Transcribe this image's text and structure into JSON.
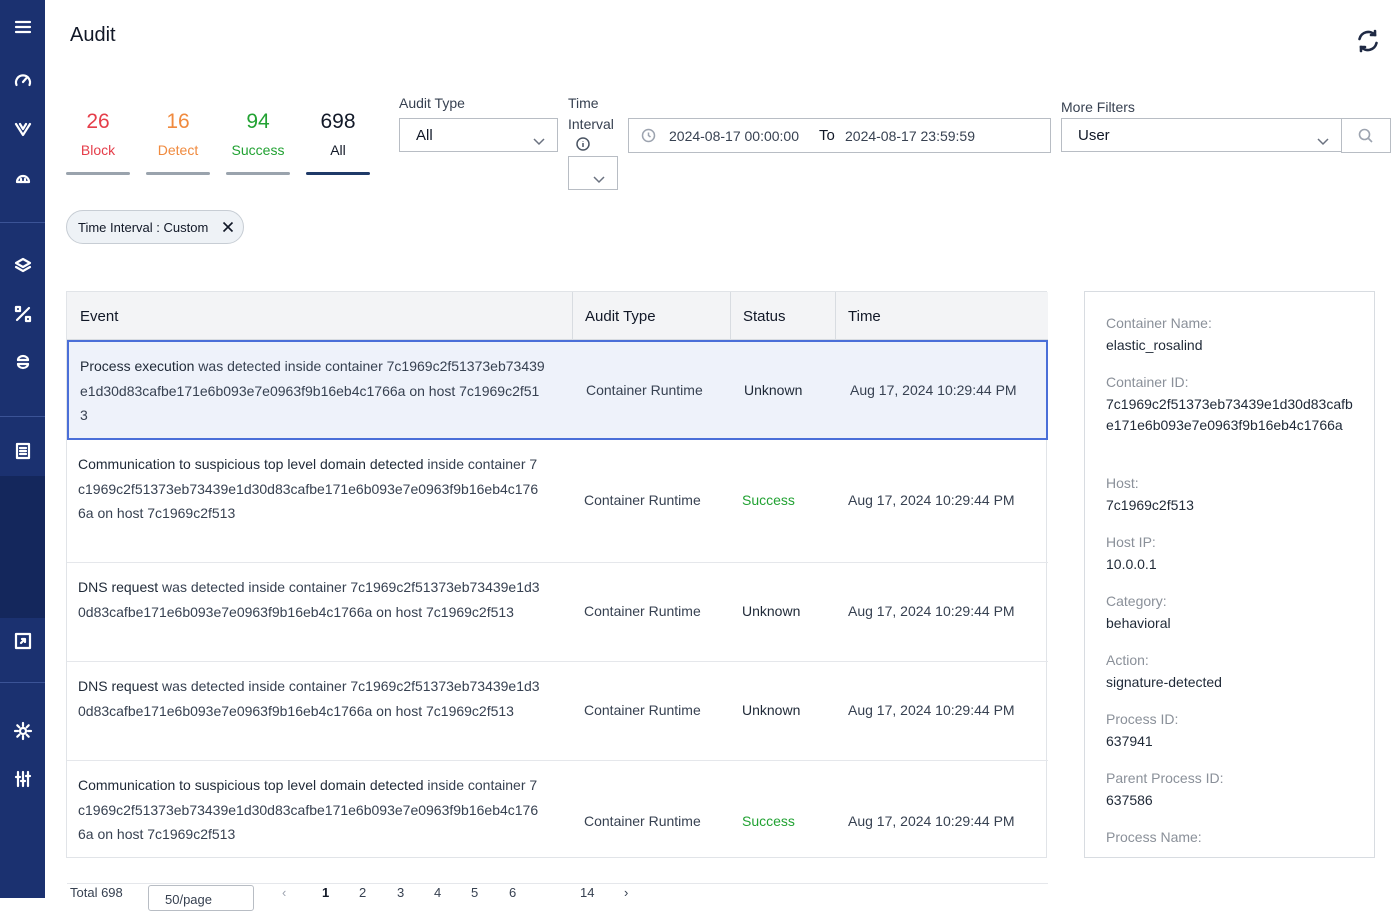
{
  "page": {
    "title": "Audit"
  },
  "counters": [
    {
      "value": "26",
      "label": "Block",
      "color": "#e53e4a"
    },
    {
      "value": "16",
      "label": "Detect",
      "color": "#f08a3e"
    },
    {
      "value": "94",
      "label": "Success",
      "color": "#22a233"
    },
    {
      "value": "698",
      "label": "All",
      "color": "#111827"
    }
  ],
  "filters": {
    "audit_type_label": "Audit Type",
    "audit_type_value": "All",
    "time_interval_label_1": "Time",
    "time_interval_label_2": "Interval",
    "time_interval_value": "",
    "range_start": "2024-08-17 00:00:00",
    "range_to": "To",
    "range_end": "2024-08-17 23:59:59",
    "more_filters_label": "More Filters",
    "more_filters_value": "User",
    "active_chip": "Time Interval : Custom"
  },
  "table": {
    "headers": [
      "Event",
      "Audit Type",
      "Status",
      "Time"
    ],
    "rows": [
      {
        "event_bold": "Process execution",
        "event_rest": " was detected inside container 7c1969c2f51373eb73439e1d30d83cafbe171e6b093e7e0963f9b16eb4c1766a on host 7c1969c2f513",
        "audit_type": "Container Runtime",
        "status": "Unknown",
        "time": "Aug 17, 2024 10:29:44 PM"
      },
      {
        "event_bold": "Communication to suspicious top level domain detected",
        "event_rest": " inside container 7c1969c2f51373eb73439e1d30d83cafbe171e6b093e7e0963f9b16eb4c1766a on host 7c1969c2f513",
        "audit_type": "Container Runtime",
        "status": "Success",
        "time": "Aug 17, 2024 10:29:44 PM"
      },
      {
        "event_bold": "DNS request",
        "event_rest": " was detected inside container 7c1969c2f51373eb73439e1d30d83cafbe171e6b093e7e0963f9b16eb4c1766a on host 7c1969c2f513",
        "audit_type": "Container Runtime",
        "status": "Unknown",
        "time": "Aug 17, 2024 10:29:44 PM"
      },
      {
        "event_bold": "DNS request",
        "event_rest": " was detected inside container 7c1969c2f51373eb73439e1d30d83cafbe171e6b093e7e0963f9b16eb4c1766a on host 7c1969c2f513",
        "audit_type": "Container Runtime",
        "status": "Unknown",
        "time": "Aug 17, 2024 10:29:44 PM"
      },
      {
        "event_bold": "Communication to suspicious top level domain detected",
        "event_rest": " inside container 7c1969c2f51373eb73439e1d30d83cafbe171e6b093e7e0963f9b16eb4c1766a on host 7c1969c2f513",
        "audit_type": "Container Runtime",
        "status": "Success",
        "time": "Aug 17, 2024 10:29:44 PM"
      }
    ]
  },
  "details": [
    {
      "key": "Container Name:",
      "value": "elastic_rosalind"
    },
    {
      "key": "Container ID:",
      "value": "7c1969c2f51373eb73439e1d30d83cafbe171e6b093e7e0963f9b16eb4c1766a"
    },
    {
      "key": "Host:",
      "value": "7c1969c2f513"
    },
    {
      "key": "Host IP:",
      "value": "10.0.0.1"
    },
    {
      "key": "Category:",
      "value": "behavioral"
    },
    {
      "key": "Action:",
      "value": "signature-detected"
    },
    {
      "key": "Process ID:",
      "value": "637941"
    },
    {
      "key": "Parent Process ID:",
      "value": "637586"
    },
    {
      "key": "Process Name:",
      "value": ""
    }
  ],
  "pagination": {
    "total": "Total 698",
    "page_size": "50/page",
    "pages": [
      "1",
      "2",
      "3",
      "4",
      "5",
      "6",
      "14"
    ]
  },
  "sidebar_icons": [
    "menu-icon",
    "dashboard-gauge-icon",
    "shield-icon",
    "cloud-upload-icon",
    "layers-icon",
    "percent-icon",
    "connection-icon",
    "document-icon",
    "resize-icon",
    "gear-icon",
    "sliders-icon"
  ]
}
